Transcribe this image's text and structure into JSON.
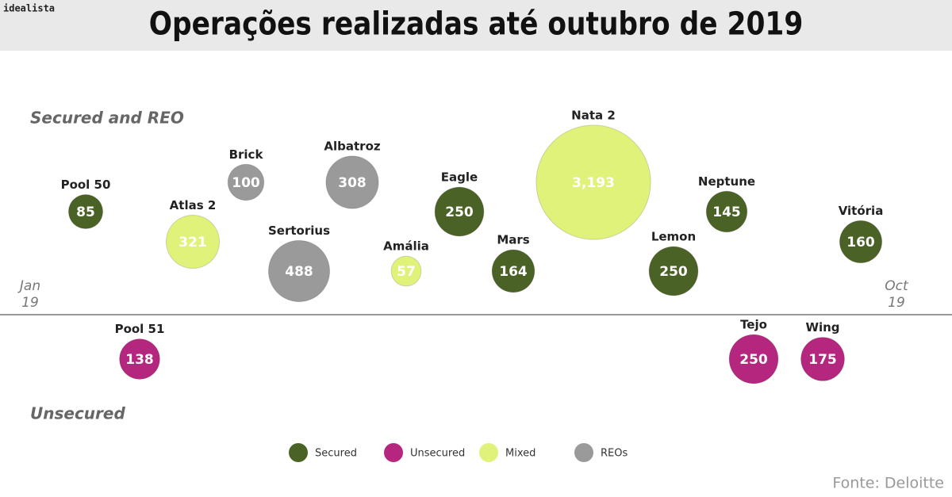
{
  "brand": "idealista",
  "chart_data": {
    "type": "bubble",
    "title": "Operações realizadas até outubro de 2019",
    "upper_label": "Secured and REO",
    "lower_label": "Unsecured",
    "x_start": [
      "Jan",
      "19"
    ],
    "x_end": [
      "Oct",
      "19"
    ],
    "series": [
      {
        "name": "Secured",
        "color": "#4b6226",
        "categories": [
          "Pool 50",
          "Eagle",
          "Mars",
          "Lemon",
          "Neptune",
          "Vitória"
        ],
        "values": [
          85,
          250,
          164,
          250,
          145,
          160
        ]
      },
      {
        "name": "Unsecured",
        "color": "#b5277f",
        "categories": [
          "Pool 51",
          "Tejo",
          "Wing"
        ],
        "values": [
          138,
          250,
          175
        ]
      },
      {
        "name": "Mixed",
        "color": "#e1f27a",
        "categories": [
          "Atlas 2",
          "Amália",
          "Nata 2"
        ],
        "values": [
          321,
          57,
          3193
        ],
        "value_labels": [
          "321",
          "57",
          "3,193"
        ]
      },
      {
        "name": "REOs",
        "color": "#9a9a9a",
        "categories": [
          "Brick",
          "Albatroz",
          "Sertorius"
        ],
        "values": [
          100,
          308,
          488
        ]
      }
    ]
  },
  "source": "Fonte: Deloitte"
}
